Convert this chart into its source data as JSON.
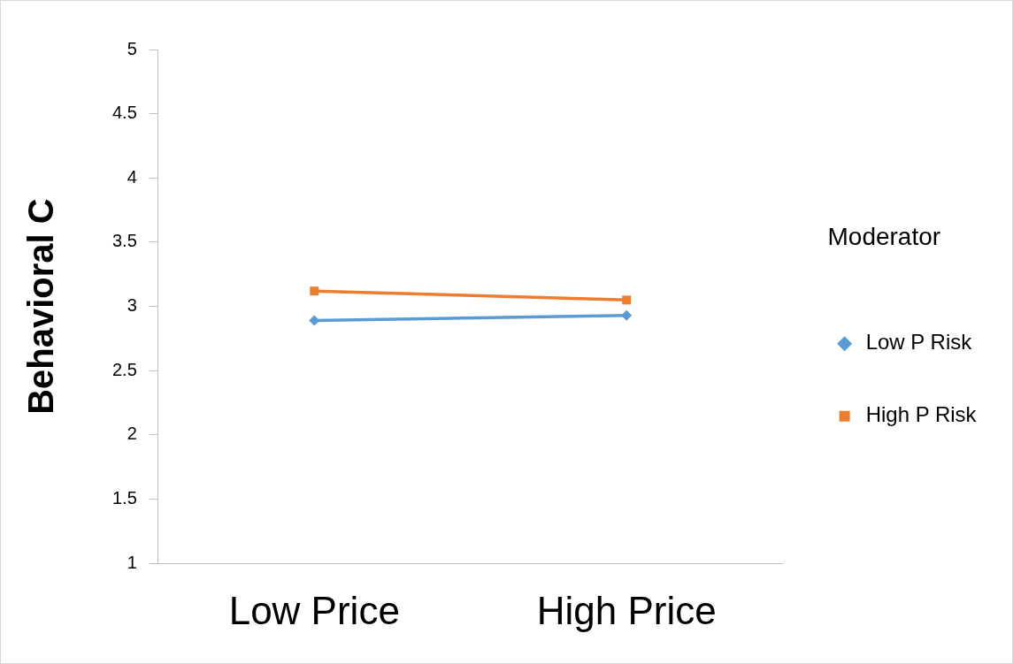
{
  "chart_data": {
    "type": "line",
    "ylabel": "Behavioral C",
    "legend_title": "Moderator",
    "categories": [
      "Low Price",
      "High Price"
    ],
    "series": [
      {
        "name": "Low P Risk",
        "color": "#5b9bd5",
        "values": [
          2.89,
          2.93
        ],
        "marker": "diamond"
      },
      {
        "name": "High P Risk",
        "color": "#ed7d31",
        "values": [
          3.12,
          3.05
        ],
        "marker": "square"
      }
    ],
    "ylim": [
      1,
      5
    ],
    "yticks": [
      1,
      1.5,
      2,
      2.5,
      3,
      3.5,
      4,
      4.5,
      5
    ],
    "grid": false,
    "legend": "right",
    "line_style": "solid"
  }
}
